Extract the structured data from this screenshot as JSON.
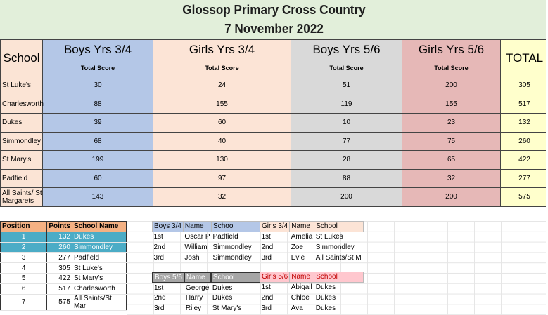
{
  "title": {
    "line1": "Glossop Primary Cross Country",
    "line2": "7 November 2022"
  },
  "main": {
    "school_header": "School",
    "total_header": "TOTAL",
    "columns": [
      {
        "label": "Boys Yrs 3/4",
        "sub": "Total Score"
      },
      {
        "label": "Girls Yrs 3/4",
        "sub": "Total Score"
      },
      {
        "label": "Boys Yrs 5/6",
        "sub": "Total Score"
      },
      {
        "label": "Girls Yrs 5/6",
        "sub": "Total Score"
      }
    ],
    "rows": [
      {
        "school": "St Luke's",
        "v": [
          "30",
          "24",
          "51",
          "200"
        ],
        "total": "305"
      },
      {
        "school": "Charlesworth",
        "v": [
          "88",
          "155",
          "119",
          "155"
        ],
        "total": "517"
      },
      {
        "school": "Dukes",
        "v": [
          "39",
          "60",
          "10",
          "23"
        ],
        "total": "132"
      },
      {
        "school": "Simmondley",
        "v": [
          "68",
          "40",
          "77",
          "75"
        ],
        "total": "260"
      },
      {
        "school": "St Mary's",
        "v": [
          "199",
          "130",
          "28",
          "65"
        ],
        "total": "422"
      },
      {
        "school": "Padfield",
        "v": [
          "60",
          "97",
          "88",
          "32"
        ],
        "total": "277"
      },
      {
        "school": "All Saints/ St Margarets",
        "v": [
          "143",
          "32",
          "200",
          "200"
        ],
        "total": "575"
      }
    ]
  },
  "positions": {
    "headers": [
      "Position",
      "Points",
      "School Name"
    ],
    "rows": [
      {
        "pos": "1",
        "pts": "132",
        "name": "Dukes"
      },
      {
        "pos": "2",
        "pts": "260",
        "name": "Simmondley"
      },
      {
        "pos": "3",
        "pts": "277",
        "name": "Padfield"
      },
      {
        "pos": "4",
        "pts": "305",
        "name": "St Luke's"
      },
      {
        "pos": "5",
        "pts": "422",
        "name": "St Mary's"
      },
      {
        "pos": "6",
        "pts": "517",
        "name": "Charlesworth"
      },
      {
        "pos": "7",
        "pts": "575",
        "name": "All Saints/St Mar"
      }
    ]
  },
  "winners": {
    "boys34": {
      "headers": [
        "Boys 3/4",
        "Name",
        "School"
      ],
      "rows": [
        [
          "1st",
          "Oscar P",
          "Padfield"
        ],
        [
          "2nd",
          "William",
          "Simmondley"
        ],
        [
          "3rd",
          "Josh",
          "Simmondley"
        ]
      ]
    },
    "girls34": {
      "headers": [
        "Girls 3/4",
        "Name",
        "School"
      ],
      "rows": [
        [
          "1st",
          "Amelia",
          "St Lukes"
        ],
        [
          "2nd",
          "Zoe",
          "Simmondley"
        ],
        [
          "3rd",
          "Evie",
          "All Saints/St M"
        ]
      ]
    },
    "boys56": {
      "headers": [
        "Boys 5/6",
        "Name",
        "School"
      ],
      "rows": [
        [
          "1st",
          "George",
          "Dukes"
        ],
        [
          "2nd",
          "Harry",
          "Dukes"
        ],
        [
          "3rd",
          "Riley",
          "St Mary's"
        ]
      ]
    },
    "girls56": {
      "headers": [
        "Girls 5/6",
        "Name",
        "School"
      ],
      "rows": [
        [
          "1st",
          "Abigail",
          "Dukes"
        ],
        [
          "2nd",
          "Chloe",
          "Dukes"
        ],
        [
          "3rd",
          "Ava",
          "Dukes"
        ]
      ]
    }
  }
}
